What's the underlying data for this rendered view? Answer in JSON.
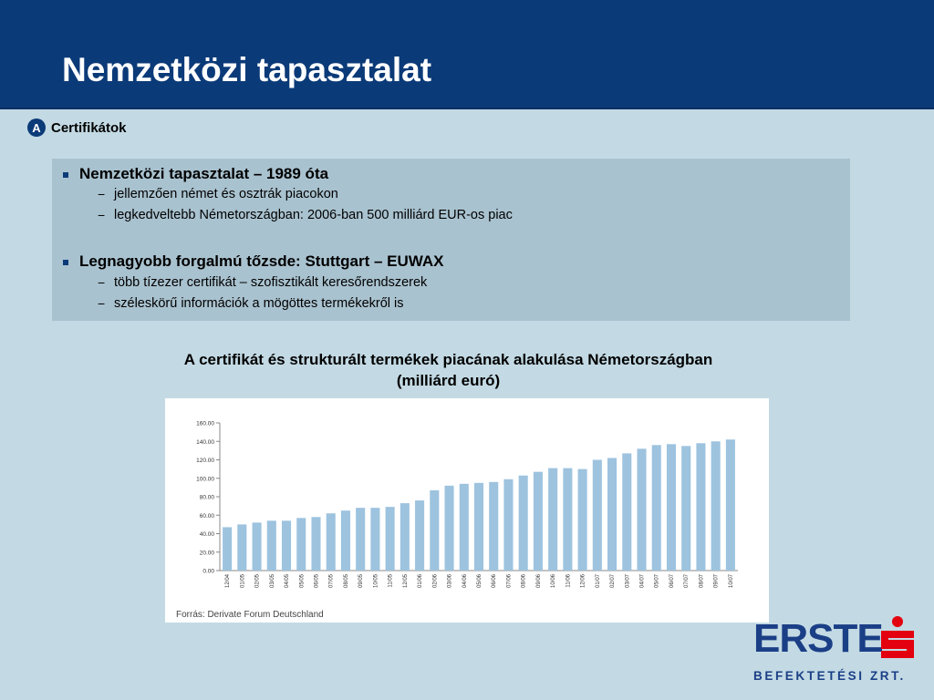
{
  "slide": {
    "title": "Nemzetközi tapasztalat",
    "section_badge": "A",
    "section_label": "Certifikátok"
  },
  "bullets": [
    {
      "text": "Nemzetközi tapasztalat – 1989 óta",
      "sub": [
        "jellemzően német és osztrák piacokon",
        "legkedveltebb Németországban: 2006-ban 500 milliárd EUR-os piac"
      ]
    },
    {
      "text": "Legnagyobb forgalmú tőzsde: Stuttgart – EUWAX",
      "sub": [
        "több tízezer certifikát – szofisztikált keresőrendszerek",
        "széleskörű információk a mögöttes termékekről is"
      ]
    }
  ],
  "chart_heading": {
    "line1": "A certifikát és strukturált termékek piacának alakulása Németországban",
    "line2": "(milliárd euró)"
  },
  "chart_data": {
    "type": "bar",
    "title": "",
    "xlabel": "",
    "ylabel": "",
    "ylim": [
      0,
      160
    ],
    "yticks": [
      "0.00",
      "20.00",
      "40.00",
      "60.00",
      "80.00",
      "100.00",
      "120.00",
      "140.00",
      "160.00"
    ],
    "grid": false,
    "bar_color": "#9dc3df",
    "categories": [
      "12/04",
      "01/05",
      "02/05",
      "03/05",
      "04/05",
      "05/05",
      "06/05",
      "07/05",
      "08/05",
      "09/05",
      "10/05",
      "11/05",
      "12/05",
      "01/06",
      "02/06",
      "03/06",
      "04/06",
      "05/06",
      "06/06",
      "07/06",
      "08/06",
      "09/06",
      "10/06",
      "11/06",
      "12/06",
      "01/07",
      "02/07",
      "03/07",
      "04/07",
      "05/07",
      "06/07",
      "07/07",
      "08/07",
      "09/07",
      "10/07"
    ],
    "values": [
      47,
      50,
      52,
      54,
      54,
      57,
      58,
      62,
      65,
      68,
      68,
      69,
      73,
      76,
      87,
      92,
      94,
      95,
      96,
      99,
      103,
      107,
      111,
      111,
      110,
      120,
      122,
      127,
      132,
      136,
      137,
      135,
      138,
      140,
      142
    ],
    "source": "Forrás: Derivate Forum Deutschland"
  },
  "logo": {
    "word": "ERSTE",
    "subtitle": "BEFEKTETÉSI ZRT.",
    "brand_color": "#1b3f86",
    "mark_color": "#e3000f"
  }
}
